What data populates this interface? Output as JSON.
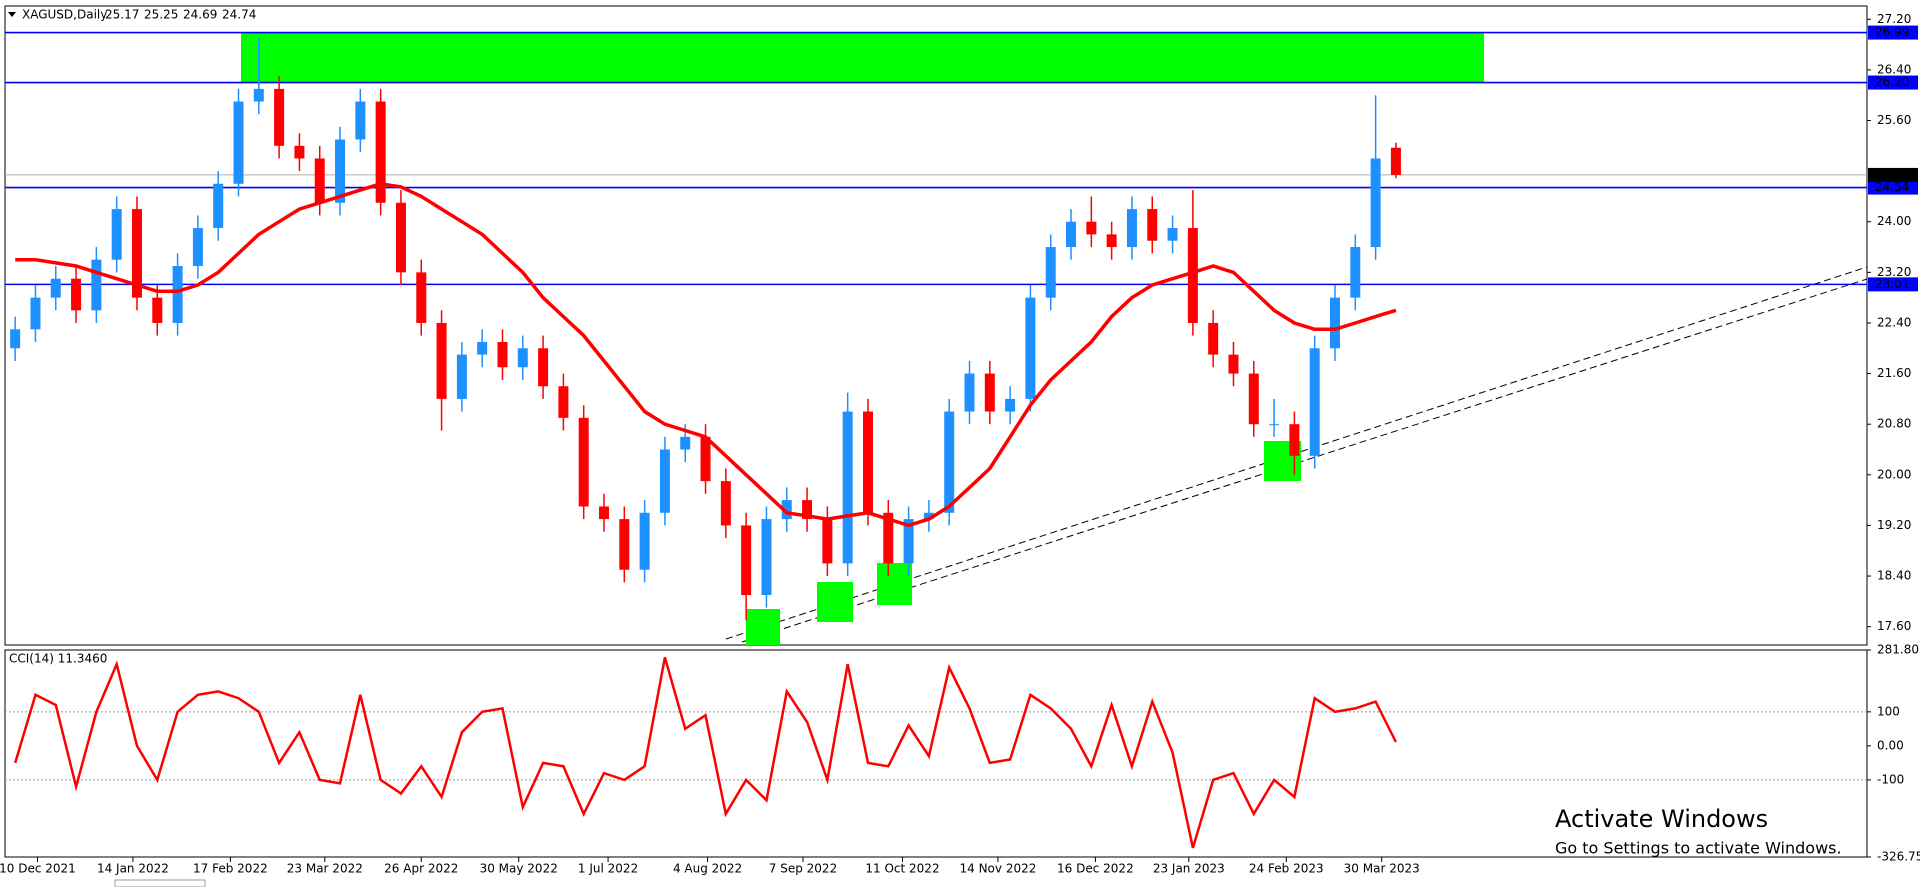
{
  "chart_data": [
    {
      "type": "candlestick",
      "title": "XAGUSD,Daily",
      "open": [
        22.0,
        22.3,
        22.8,
        23.1,
        22.6,
        23.4,
        24.2,
        22.8,
        22.4,
        23.3,
        23.9,
        24.6,
        25.9,
        26.1,
        25.2,
        25.0,
        24.3,
        25.3,
        25.9,
        24.3,
        23.2,
        22.4,
        21.2,
        21.9,
        22.1,
        21.7,
        22.0,
        21.4,
        20.9,
        19.5,
        19.3,
        18.5,
        19.4,
        20.4,
        20.6,
        19.9,
        19.2,
        18.1,
        19.3,
        19.6,
        19.3,
        18.6,
        21.0,
        19.4,
        18.6,
        19.3,
        19.4,
        21.0,
        21.6,
        21.0,
        21.2,
        22.8,
        23.6,
        24.0,
        23.8,
        23.6,
        24.2,
        23.7,
        23.9,
        22.4,
        21.9,
        21.6,
        20.8,
        20.8,
        20.3,
        22.0,
        22.8,
        23.6,
        25.17
      ],
      "high": [
        22.5,
        23.0,
        23.3,
        23.3,
        23.6,
        24.4,
        24.4,
        23.0,
        23.5,
        24.1,
        24.8,
        26.1,
        26.9,
        26.3,
        25.4,
        25.2,
        25.5,
        26.1,
        26.1,
        24.5,
        23.4,
        22.6,
        22.1,
        22.3,
        22.3,
        22.2,
        22.2,
        21.6,
        21.1,
        19.7,
        19.5,
        19.6,
        20.6,
        20.8,
        20.8,
        20.1,
        19.4,
        19.5,
        19.8,
        19.8,
        19.5,
        21.3,
        21.2,
        19.6,
        19.5,
        19.6,
        21.2,
        21.8,
        21.8,
        21.4,
        23.0,
        23.8,
        24.2,
        24.4,
        24.0,
        24.4,
        24.4,
        24.1,
        24.5,
        22.6,
        22.1,
        21.8,
        21.2,
        21.0,
        22.2,
        23.0,
        23.8,
        26.0,
        25.25
      ],
      "low": [
        21.8,
        22.1,
        22.6,
        22.4,
        22.4,
        23.2,
        22.6,
        22.2,
        22.2,
        23.1,
        23.7,
        24.4,
        25.7,
        25.0,
        24.8,
        24.1,
        24.1,
        25.1,
        24.1,
        23.0,
        22.2,
        20.7,
        21.0,
        21.7,
        21.5,
        21.5,
        21.2,
        20.7,
        19.3,
        19.1,
        18.3,
        18.3,
        19.2,
        20.2,
        19.7,
        19.0,
        17.7,
        17.9,
        19.1,
        19.1,
        18.4,
        18.4,
        19.2,
        18.4,
        18.4,
        19.1,
        19.2,
        20.8,
        20.8,
        20.8,
        21.0,
        22.6,
        23.4,
        23.6,
        23.4,
        23.4,
        23.5,
        23.5,
        22.2,
        21.7,
        21.4,
        20.6,
        20.6,
        20.0,
        20.1,
        21.8,
        22.6,
        23.4,
        24.69
      ],
      "close": [
        22.3,
        22.8,
        23.1,
        22.6,
        23.4,
        24.2,
        22.8,
        22.4,
        23.3,
        23.9,
        24.6,
        25.9,
        26.1,
        25.2,
        25.0,
        24.3,
        25.3,
        25.9,
        24.3,
        23.2,
        22.4,
        21.2,
        21.9,
        22.1,
        21.7,
        22.0,
        21.4,
        20.9,
        19.5,
        19.3,
        18.5,
        19.4,
        20.4,
        20.6,
        19.9,
        19.2,
        18.1,
        19.3,
        19.6,
        19.3,
        18.6,
        21.0,
        19.4,
        18.6,
        19.3,
        19.4,
        21.0,
        21.6,
        21.0,
        21.2,
        22.8,
        23.6,
        24.0,
        23.8,
        23.6,
        24.2,
        23.7,
        23.9,
        22.4,
        21.9,
        21.6,
        20.8,
        20.8,
        20.3,
        22.0,
        22.8,
        23.6,
        25.0,
        24.74
      ],
      "up_color": "#1e90ff",
      "down_color": "#ff0000",
      "ma": {
        "color": "#ff0000",
        "values": [
          23.4,
          23.4,
          23.35,
          23.3,
          23.2,
          23.1,
          23.0,
          22.9,
          22.9,
          23.0,
          23.2,
          23.5,
          23.8,
          24.0,
          24.2,
          24.3,
          24.4,
          24.5,
          24.6,
          24.55,
          24.4,
          24.2,
          24.0,
          23.8,
          23.5,
          23.2,
          22.8,
          22.5,
          22.2,
          21.8,
          21.4,
          21.0,
          20.8,
          20.7,
          20.6,
          20.3,
          20.0,
          19.7,
          19.4,
          19.35,
          19.3,
          19.35,
          19.4,
          19.3,
          19.2,
          19.3,
          19.5,
          19.8,
          20.1,
          20.6,
          21.1,
          21.5,
          21.8,
          22.1,
          22.5,
          22.8,
          23.0,
          23.1,
          23.2,
          23.3,
          23.2,
          22.9,
          22.6,
          22.4,
          22.3,
          22.3,
          22.4,
          22.5,
          22.6
        ]
      },
      "ylim": [
        17.31,
        27.41
      ],
      "yticks": [
        {
          "value": 27.2,
          "label": "27.20"
        },
        {
          "value": 26.4,
          "label": "26.40"
        },
        {
          "value": 25.6,
          "label": "25.60"
        },
        {
          "value": 24,
          "label": "24.00"
        },
        {
          "value": 23.2,
          "label": "23.20"
        },
        {
          "value": 22.4,
          "label": "22.40"
        },
        {
          "value": 21.6,
          "label": "21.60"
        },
        {
          "value": 20.8,
          "label": "20.80"
        },
        {
          "value": 20,
          "label": "20.00"
        },
        {
          "value": 19.2,
          "label": "19.20"
        },
        {
          "value": 18.4,
          "label": "18.40"
        },
        {
          "value": 17.6,
          "label": "17.60"
        }
      ],
      "xlim": [
        -0.5,
        91.2
      ],
      "xticks": [
        {
          "value": 1.1,
          "label": "10 Dec 2021"
        },
        {
          "value": 5.8,
          "label": "14 Jan 2022"
        },
        {
          "value": 10.6,
          "label": "17 Feb 2022"
        },
        {
          "value": 15.25,
          "label": "23 Mar 2022"
        },
        {
          "value": 20.0,
          "label": "26 Apr 2022"
        },
        {
          "value": 24.8,
          "label": "30 May 2022"
        },
        {
          "value": 29.2,
          "label": "1 Jul 2022"
        },
        {
          "value": 34.1,
          "label": "4 Aug 2022"
        },
        {
          "value": 38.8,
          "label": "7 Sep 2022"
        },
        {
          "value": 43.7,
          "label": "11 Oct 2022"
        },
        {
          "value": 48.4,
          "label": "14 Nov 2022"
        },
        {
          "value": 53.2,
          "label": "16 Dec 2022"
        },
        {
          "value": 57.8,
          "label": "23 Jan 2023"
        },
        {
          "value": 62.6,
          "label": "24 Feb 2023"
        },
        {
          "value": 67.3,
          "label": "30 Mar 2023"
        }
      ],
      "levels": [
        26.99,
        {
          "value": 26.2,
          "label": "26.20"
        },
        24.54,
        23.01
      ],
      "level_color": "#0000ff",
      "zone_color": "#00ff00"
    },
    {
      "type": "line",
      "title": "CCI(14) 11.3460",
      "color": "#ff0000",
      "values": [
        -50,
        150,
        120,
        -120,
        100,
        240,
        0,
        -100,
        100,
        150,
        160,
        140,
        100,
        -50,
        40,
        -100,
        -110,
        150,
        -100,
        -140,
        -60,
        -150,
        40,
        100,
        110,
        -180,
        -50,
        -60,
        -200,
        -80,
        -100,
        -60,
        260,
        50,
        90,
        -200,
        -100,
        -160,
        160,
        70,
        -100,
        240,
        -50,
        -60,
        60,
        -30,
        230,
        110,
        -50,
        -40,
        150,
        110,
        50,
        -60,
        120,
        -60,
        130,
        -20,
        -300,
        -100,
        -80,
        -200,
        -100,
        -150,
        140,
        100,
        110,
        130,
        11.346
      ],
      "ylim": [
        -326.754,
        281.803
      ],
      "yticks": [
        281.803,
        100,
        {
          "value": 0,
          "label": "0.00"
        },
        -100,
        -326.754
      ],
      "levels": [
        100,
        -100
      ]
    }
  ],
  "watermark": {
    "title": "Activate Windows",
    "subtitle": "Go to Settings to activate Windows."
  }
}
